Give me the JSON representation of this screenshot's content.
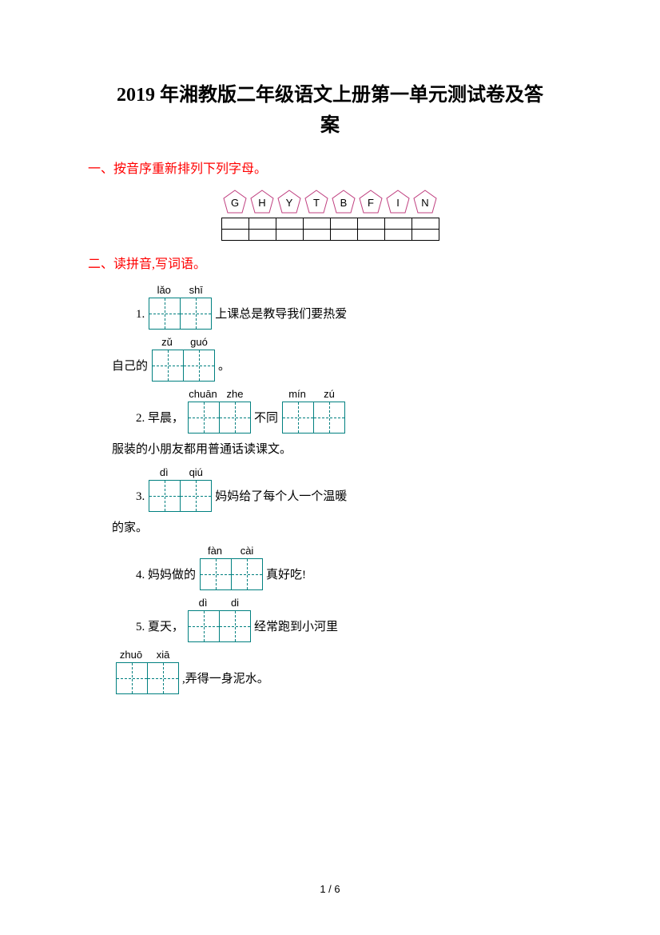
{
  "title_line1": "2019 年湘教版二年级语文上册第一单元测试卷及答",
  "title_line2": "案",
  "section1": {
    "header": "一、按音序重新排列下列字母。",
    "letters": [
      "G",
      "H",
      "Y",
      "T",
      "B",
      "F",
      "I",
      "N"
    ],
    "pentagon_stroke": "#c04080",
    "grid_cols": 8,
    "grid_rows": 2
  },
  "section2": {
    "header": "二、读拼音,写词语。",
    "box_border_color": "#008080",
    "q1": {
      "num": "1.",
      "pinyin1": [
        "lǎo",
        "shī"
      ],
      "text1": "上课总是教导我们要热爱",
      "cont_pre": "自己的",
      "pinyin2": [
        "zǔ",
        "guó"
      ],
      "cont_post": "。"
    },
    "q2": {
      "num": "2. 早晨，",
      "pinyin1": [
        "chuān",
        "zhe"
      ],
      "mid": "不同",
      "pinyin2": [
        "mín",
        "zú"
      ],
      "cont": "服装的小朋友都用普通话读课文。"
    },
    "q3": {
      "num": "3.",
      "pinyin1": [
        "dì",
        "qiú"
      ],
      "text1": "妈妈给了每个人一个温暖",
      "cont": "的家。"
    },
    "q4": {
      "num": "4. 妈妈做的",
      "pinyin1": [
        "fàn",
        "cài"
      ],
      "text1": "真好吃!"
    },
    "q5": {
      "num": "5. 夏天，",
      "pinyin1": [
        "dì",
        "di"
      ],
      "text1": "经常跑到小河里",
      "pinyin2": [
        "zhuō",
        "xiā"
      ],
      "cont_post": ",弄得一身泥水。"
    }
  },
  "footer": "1 / 6"
}
